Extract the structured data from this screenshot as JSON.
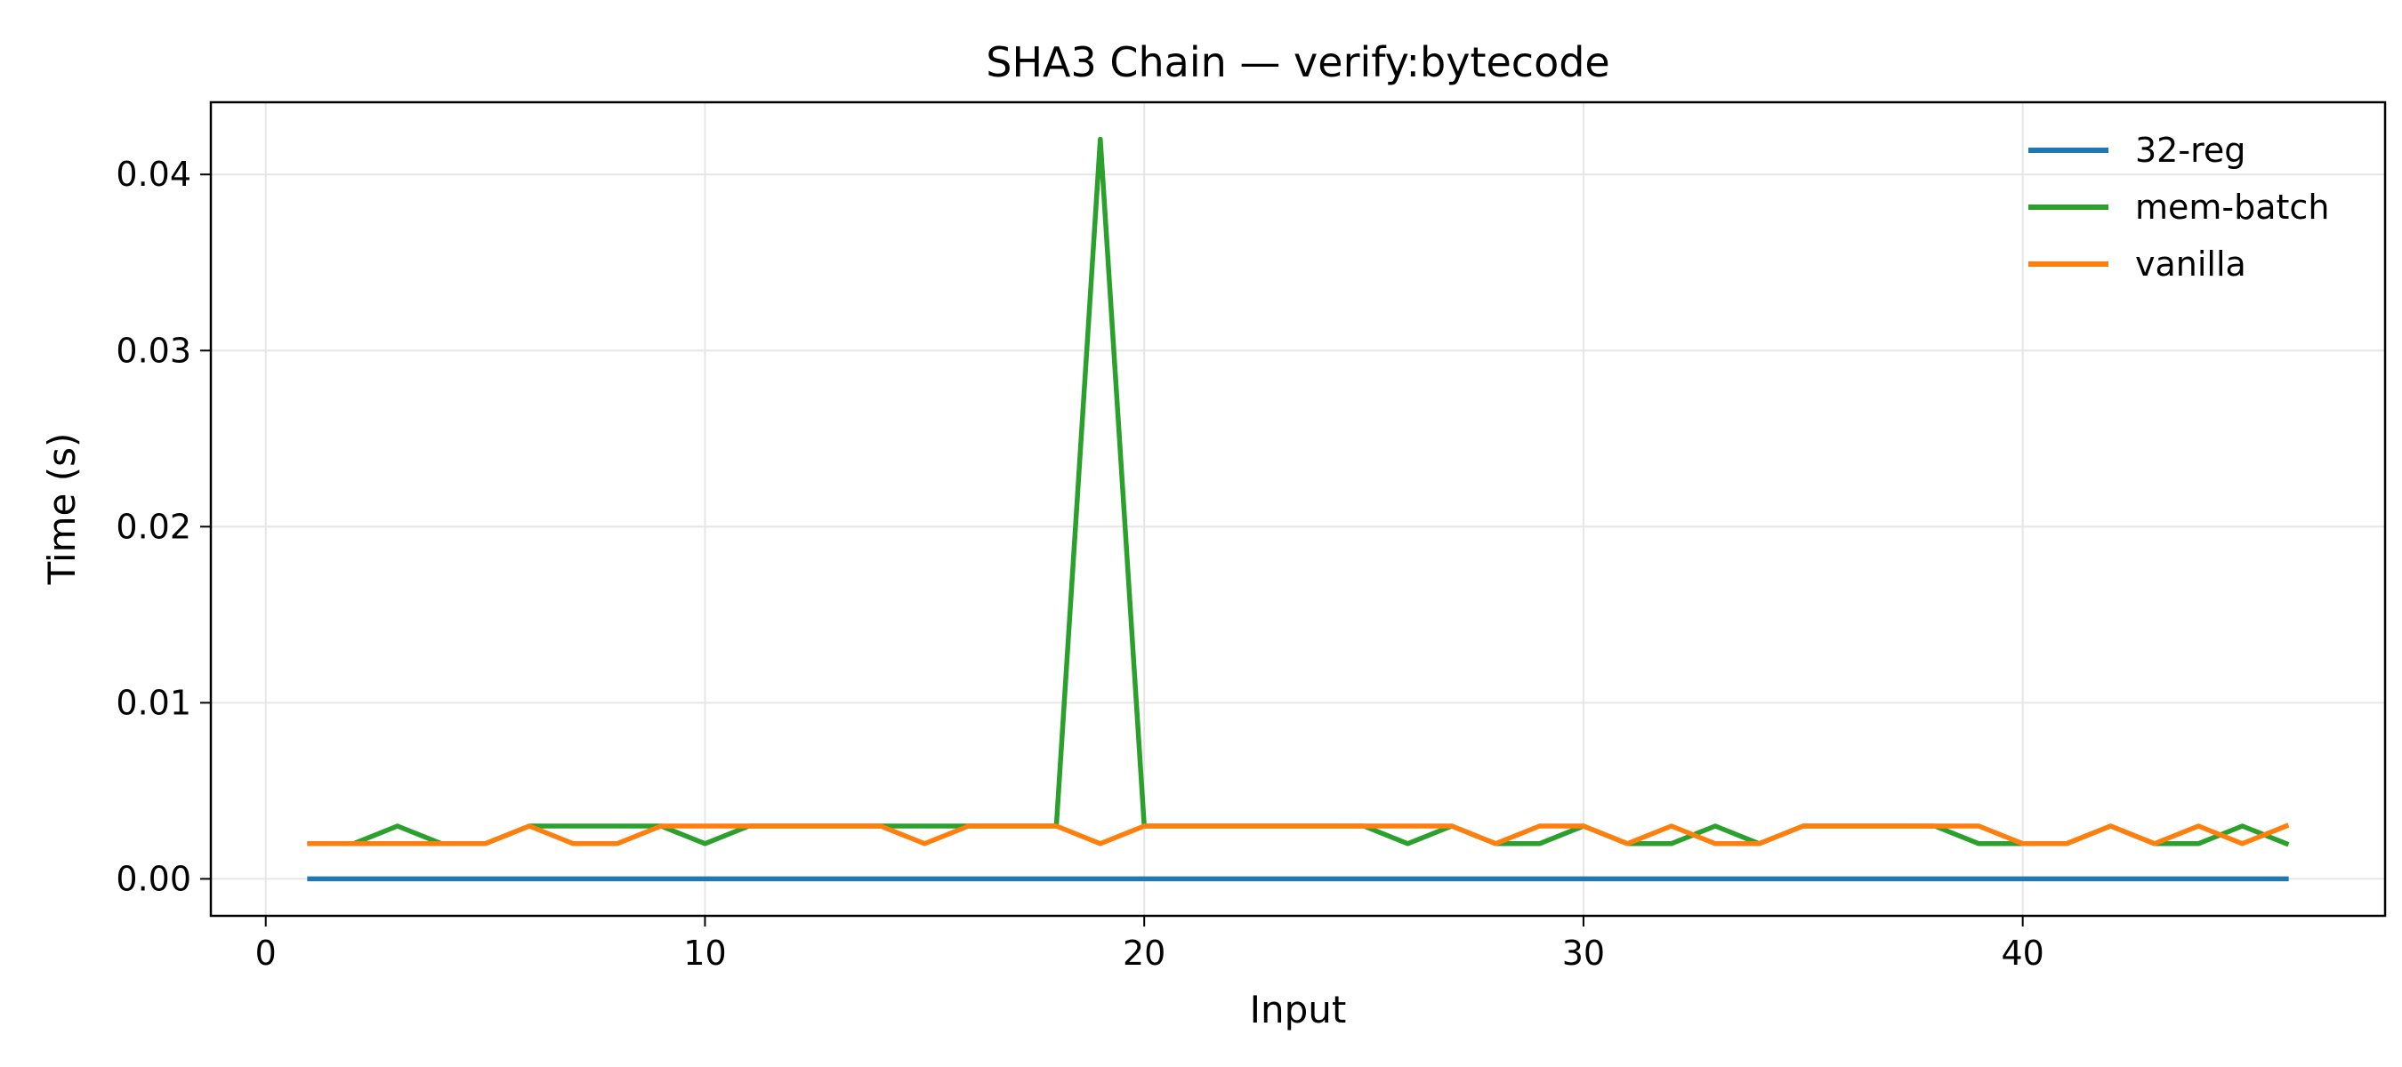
{
  "chart_data": {
    "type": "line",
    "title": "SHA3 Chain — verify:bytecode",
    "xlabel": "Input",
    "ylabel": "Time (s)",
    "xlim": [
      -1.25,
      48.25
    ],
    "ylim": [
      -0.0021,
      0.0441
    ],
    "xticks": [
      0,
      10,
      20,
      30,
      40
    ],
    "xtick_labels": [
      "0",
      "10",
      "20",
      "30",
      "40"
    ],
    "yticks": [
      0.0,
      0.01,
      0.02,
      0.03,
      0.04
    ],
    "ytick_labels": [
      "0.00",
      "0.01",
      "0.02",
      "0.03",
      "0.04"
    ],
    "grid": true,
    "legend_position": "top-right",
    "x": [
      1,
      2,
      3,
      4,
      5,
      6,
      7,
      8,
      9,
      10,
      11,
      12,
      13,
      14,
      15,
      16,
      17,
      18,
      19,
      20,
      21,
      22,
      23,
      24,
      25,
      26,
      27,
      28,
      29,
      30,
      31,
      32,
      33,
      34,
      35,
      36,
      37,
      38,
      39,
      40,
      41,
      42,
      43,
      44,
      45,
      46
    ],
    "series": [
      {
        "name": "32-reg",
        "color": "#1f77b4",
        "values": [
          0,
          0,
          0,
          0,
          0,
          0,
          0,
          0,
          0,
          0,
          0,
          0,
          0,
          0,
          0,
          0,
          0,
          0,
          0,
          0,
          0,
          0,
          0,
          0,
          0,
          0,
          0,
          0,
          0,
          0,
          0,
          0,
          0,
          0,
          0,
          0,
          0,
          0,
          0,
          0,
          0,
          0,
          0,
          0,
          0,
          0
        ]
      },
      {
        "name": "mem-batch",
        "color": "#2ca02c",
        "values": [
          0.002,
          0.002,
          0.003,
          0.002,
          0.002,
          0.003,
          0.003,
          0.003,
          0.003,
          0.002,
          0.003,
          0.003,
          0.003,
          0.003,
          0.003,
          0.003,
          0.003,
          0.003,
          0.042,
          0.003,
          0.003,
          0.003,
          0.003,
          0.003,
          0.003,
          0.002,
          0.003,
          0.002,
          0.002,
          0.003,
          0.002,
          0.002,
          0.003,
          0.002,
          0.003,
          0.003,
          0.003,
          0.003,
          0.002,
          0.002,
          0.002,
          0.003,
          0.002,
          0.002,
          0.003,
          0.002
        ]
      },
      {
        "name": "vanilla",
        "color": "#ff7f0e",
        "values": [
          0.002,
          0.002,
          0.002,
          0.002,
          0.002,
          0.003,
          0.002,
          0.002,
          0.003,
          0.003,
          0.003,
          0.003,
          0.003,
          0.003,
          0.002,
          0.003,
          0.003,
          0.003,
          0.002,
          0.003,
          0.003,
          0.003,
          0.003,
          0.003,
          0.003,
          0.003,
          0.003,
          0.002,
          0.003,
          0.003,
          0.002,
          0.003,
          0.002,
          0.002,
          0.003,
          0.003,
          0.003,
          0.003,
          0.003,
          0.002,
          0.002,
          0.003,
          0.002,
          0.003,
          0.002,
          0.003
        ]
      }
    ]
  }
}
